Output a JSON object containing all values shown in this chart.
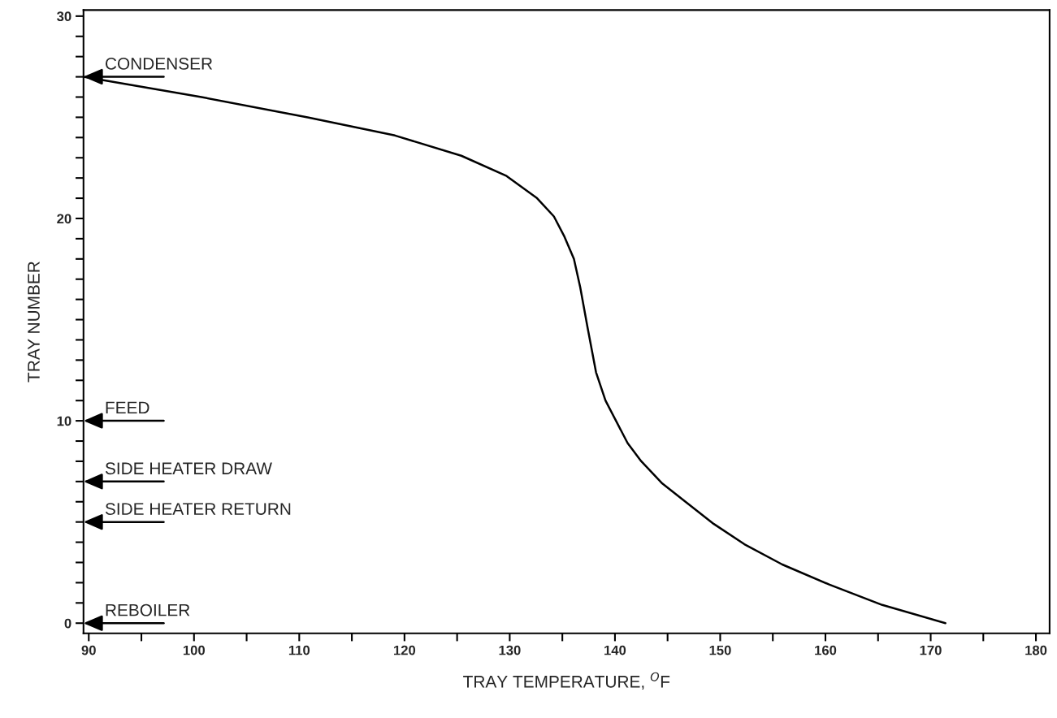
{
  "chart_data": {
    "type": "line",
    "xlabel": "TRAY TEMPERATURE, $^{O}$F",
    "ylabel": "TRAY NUMBER",
    "x": [
      89.5,
      100.7,
      110.8,
      119.1,
      125.4,
      129.7,
      132.6,
      134.2,
      135.2,
      136.1,
      136.7,
      137.4,
      138.2,
      139.1,
      141.2,
      142.5,
      144.5,
      146.7,
      149.4,
      152.3,
      155.9,
      160.4,
      165.4,
      171.4
    ],
    "series": [
      {
        "color": "#000000",
        "values": [
          27,
          26.0,
          25.0,
          24.1,
          23.1,
          22.1,
          21.0,
          20.1,
          19.1,
          18.0,
          16.6,
          14.6,
          12.4,
          11.0,
          8.9,
          8.0,
          6.9,
          6.0,
          4.9,
          3.9,
          2.9,
          1.9,
          0.9,
          0
        ]
      }
    ],
    "annotations": [
      "CONDENSER",
      "FEED",
      "SIDE HEATER DRAW",
      "SIDE HEATER RETURN",
      "REBOILER"
    ],
    "xlim": [
      89.5,
      181.3
    ],
    "ylim": [
      -0.5,
      30.3
    ],
    "xticks": [
      90,
      {
        "value": 95,
        "label": null
      },
      100,
      {
        "value": 105,
        "label": null
      },
      110,
      {
        "value": 115,
        "label": null
      },
      120,
      {
        "value": 125,
        "label": null
      },
      130,
      {
        "value": 135,
        "label": null
      },
      140,
      {
        "value": 145,
        "label": null
      },
      150,
      {
        "value": 155,
        "label": null
      },
      160,
      {
        "value": 165,
        "label": null
      },
      170,
      {
        "value": 175,
        "label": null
      },
      180
    ],
    "yticks": [
      0,
      {
        "value": 1,
        "label": null
      },
      {
        "value": 2,
        "label": null
      },
      {
        "value": 3,
        "label": null
      },
      {
        "value": 4,
        "label": null
      },
      {
        "value": 5,
        "label": null
      },
      {
        "value": 6,
        "label": null
      },
      {
        "value": 7,
        "label": null
      },
      {
        "value": 8,
        "label": null
      },
      {
        "value": 9,
        "label": null
      },
      10,
      {
        "value": 11,
        "label": null
      },
      {
        "value": 12,
        "label": null
      },
      {
        "value": 13,
        "label": null
      },
      {
        "value": 14,
        "label": null
      },
      {
        "value": 15,
        "label": null
      },
      {
        "value": 16,
        "label": null
      },
      {
        "value": 17,
        "label": null
      },
      {
        "value": 18,
        "label": null
      },
      {
        "value": 19,
        "label": null
      },
      20,
      {
        "value": 21,
        "label": null
      },
      {
        "value": 22,
        "label": null
      },
      {
        "value": 23,
        "label": null
      },
      {
        "value": 24,
        "label": null
      },
      {
        "value": 25,
        "label": null
      },
      {
        "value": 26,
        "label": null
      },
      {
        "value": 27,
        "label": null
      },
      {
        "value": 28,
        "label": null
      },
      {
        "value": 29,
        "label": null
      },
      30
    ],
    "grid": false,
    "legend": false,
    "line_style": "solid",
    "marker": "none"
  }
}
